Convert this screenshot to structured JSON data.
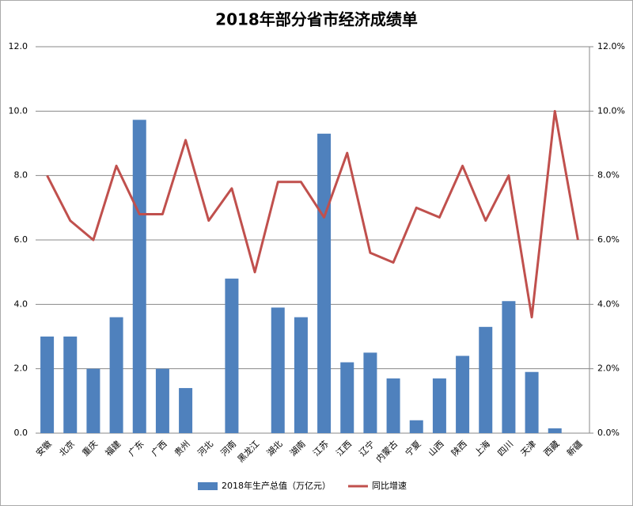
{
  "chart_data": {
    "type": "bar-line",
    "title": "2018年部分省市经济成绩单",
    "categories": [
      "安徽",
      "北京",
      "重庆",
      "福建",
      "广东",
      "广西",
      "贵州",
      "河北",
      "河南",
      "黑龙江",
      "湖北",
      "湖南",
      "江苏",
      "江西",
      "辽宁",
      "内蒙古",
      "宁夏",
      "山西",
      "陕西",
      "上海",
      "四川",
      "天津",
      "西藏",
      "新疆"
    ],
    "series": [
      {
        "name": "2018年生产总值（万亿元）",
        "type": "bar",
        "color": "#4f81bd",
        "values": [
          3.0,
          3.0,
          2.0,
          3.6,
          9.73,
          2.0,
          1.4,
          null,
          4.8,
          null,
          3.9,
          3.6,
          9.3,
          2.2,
          2.5,
          1.7,
          0.4,
          1.7,
          2.4,
          3.3,
          4.1,
          1.9,
          0.15,
          null
        ]
      },
      {
        "name": "同比增速",
        "type": "line",
        "axis": "y2",
        "color": "#c0504d",
        "values": [
          8.0,
          6.6,
          6.0,
          8.3,
          6.8,
          6.8,
          9.1,
          6.6,
          7.6,
          5.0,
          7.8,
          7.8,
          6.7,
          8.7,
          5.6,
          5.3,
          7.0,
          6.7,
          8.3,
          6.6,
          8.0,
          3.6,
          10.0,
          6.0
        ]
      }
    ],
    "ylim": [
      0,
      12
    ],
    "yticks": [
      {
        "value": 0,
        "label": "0.0"
      },
      {
        "value": 2,
        "label": "2.0"
      },
      {
        "value": 4,
        "label": "4.0"
      },
      {
        "value": 6,
        "label": "6.0"
      },
      {
        "value": 8,
        "label": "8.0"
      },
      {
        "value": 10,
        "label": "10.0"
      },
      {
        "value": 12,
        "label": "12.0"
      }
    ],
    "y2lim": [
      0,
      12
    ],
    "y2ticks": [
      {
        "value": 0,
        "label": "0.0%"
      },
      {
        "value": 2,
        "label": "2.0%"
      },
      {
        "value": 4,
        "label": "4.0%"
      },
      {
        "value": 6,
        "label": "6.0%"
      },
      {
        "value": 8,
        "label": "8.0%"
      },
      {
        "value": 10,
        "label": "10.0%"
      },
      {
        "value": 12,
        "label": "12.0%"
      }
    ],
    "grid": true,
    "legend": "bottom"
  }
}
